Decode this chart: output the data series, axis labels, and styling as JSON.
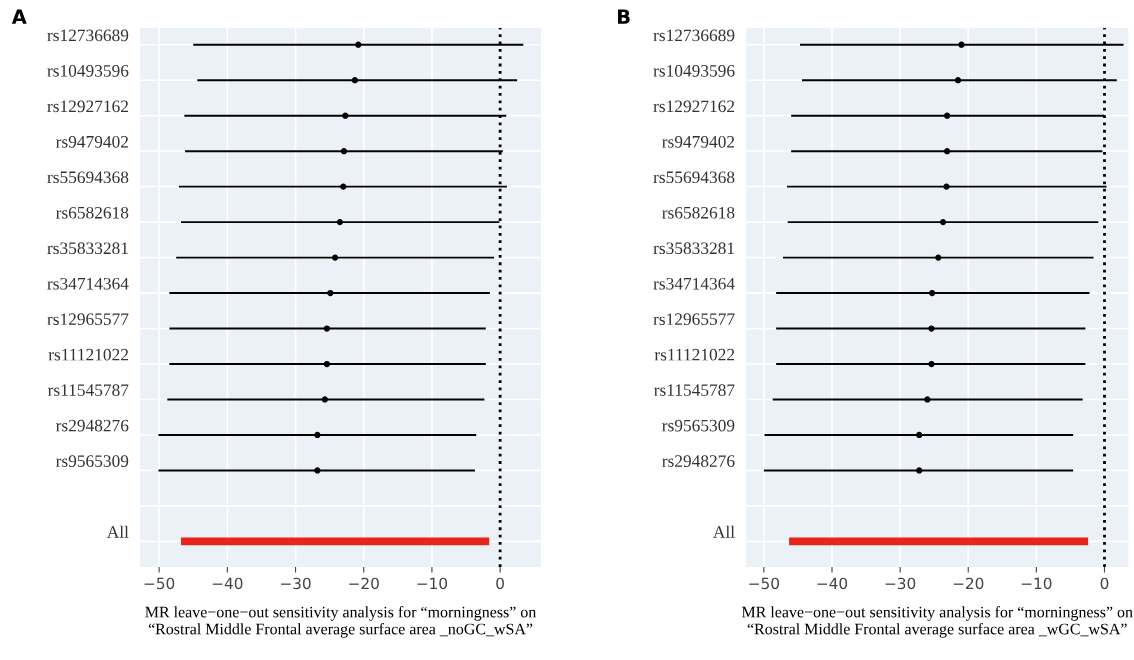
{
  "chart_data": [
    {
      "type": "scatter",
      "orientation": "horizontal",
      "title": "A",
      "xlabel": "MR leave−one−out sensitivity analysis for “morningness” on\n“Rostral Middle Frontal average surface area _noGC_wSA”",
      "categories": [
        "rs12736689",
        "rs10493596",
        "rs12927162",
        "rs9479402",
        "rs55694368",
        "rs6582618",
        "rs35833281",
        "rs34714364",
        "rs12965577",
        "rs11121022",
        "rs11545787",
        "rs2948276",
        "rs9565309",
        null,
        "All"
      ],
      "series": [
        {
          "type": "scatter",
          "color": "#000000",
          "marker": "circle",
          "values": [
            -20.8,
            -21.3,
            -22.7,
            -22.9,
            -23.0,
            -23.5,
            -24.2,
            -24.9,
            -25.4,
            -25.4,
            -25.7,
            -26.8,
            -26.8,
            null,
            null
          ],
          "errors": [
            [
              -45.0,
              3.4
            ],
            [
              -44.4,
              2.5
            ],
            [
              -46.3,
              0.9
            ],
            [
              -46.2,
              0.4
            ],
            [
              -47.1,
              1.0
            ],
            [
              -46.8,
              -0.1
            ],
            [
              -47.5,
              -0.9
            ],
            [
              -48.5,
              -1.5
            ],
            [
              -48.5,
              -2.1
            ],
            [
              -48.5,
              -2.1
            ],
            [
              -48.8,
              -2.3
            ],
            [
              -50.1,
              -3.5
            ],
            [
              -50.1,
              -3.7
            ],
            null,
            null
          ]
        },
        {
          "type": "bar",
          "color": "#e8251b",
          "values": [
            null,
            null,
            null,
            null,
            null,
            null,
            null,
            null,
            null,
            null,
            null,
            null,
            null,
            null,
            45.2
          ],
          "base": [
            null,
            null,
            null,
            null,
            null,
            null,
            null,
            null,
            null,
            null,
            null,
            null,
            null,
            null,
            -46.8
          ]
        }
      ],
      "xlim": [
        -52.8,
        6.0
      ],
      "xticks": [
        -50,
        -40,
        -30,
        -20,
        -10,
        0
      ],
      "ref_lines": [
        {
          "axis": "x",
          "value": 0,
          "color": "#000000",
          "line_style": "dotted"
        }
      ],
      "grid": true
    },
    {
      "type": "scatter",
      "orientation": "horizontal",
      "title": "B",
      "xlabel": "MR leave−one−out sensitivity analysis for “morningness” on\n“Rostral Middle Frontal average surface area _wGC_wSA”",
      "categories": [
        "rs12736689",
        "rs10493596",
        "rs12927162",
        "rs9479402",
        "rs55694368",
        "rs6582618",
        "rs35833281",
        "rs34714364",
        "rs12965577",
        "rs11121022",
        "rs11545787",
        "rs9565309",
        "rs2948276",
        null,
        "All"
      ],
      "series": [
        {
          "type": "scatter",
          "color": "#000000",
          "marker": "circle",
          "values": [
            -21.0,
            -21.5,
            -23.1,
            -23.1,
            -23.2,
            -23.7,
            -24.4,
            -25.3,
            -25.4,
            -25.4,
            -26.0,
            -27.2,
            -27.2,
            null,
            null
          ],
          "errors": [
            [
              -44.7,
              2.8
            ],
            [
              -44.4,
              1.8
            ],
            [
              -46.0,
              0
            ],
            [
              -46.0,
              -0.3
            ],
            [
              -46.6,
              0.3
            ],
            [
              -46.5,
              -0.9
            ],
            [
              -47.2,
              -1.6
            ],
            [
              -48.2,
              -2.2
            ],
            [
              -48.2,
              -2.8
            ],
            [
              -48.2,
              -2.8
            ],
            [
              -48.7,
              -3.2
            ],
            [
              -49.9,
              -4.6
            ],
            [
              -50.0,
              -4.6
            ],
            null,
            null
          ]
        },
        {
          "type": "bar",
          "color": "#e8251b",
          "values": [
            null,
            null,
            null,
            null,
            null,
            null,
            null,
            null,
            null,
            null,
            null,
            null,
            null,
            null,
            43.9
          ],
          "base": [
            null,
            null,
            null,
            null,
            null,
            null,
            null,
            null,
            null,
            null,
            null,
            null,
            null,
            null,
            -46.3
          ]
        }
      ],
      "xlim": [
        -52.6,
        3.5
      ],
      "xticks": [
        -50,
        -40,
        -30,
        -20,
        -10,
        0
      ],
      "ref_lines": [
        {
          "axis": "x",
          "value": 0,
          "color": "#000000",
          "line_style": "dotted"
        }
      ],
      "grid": true
    }
  ]
}
